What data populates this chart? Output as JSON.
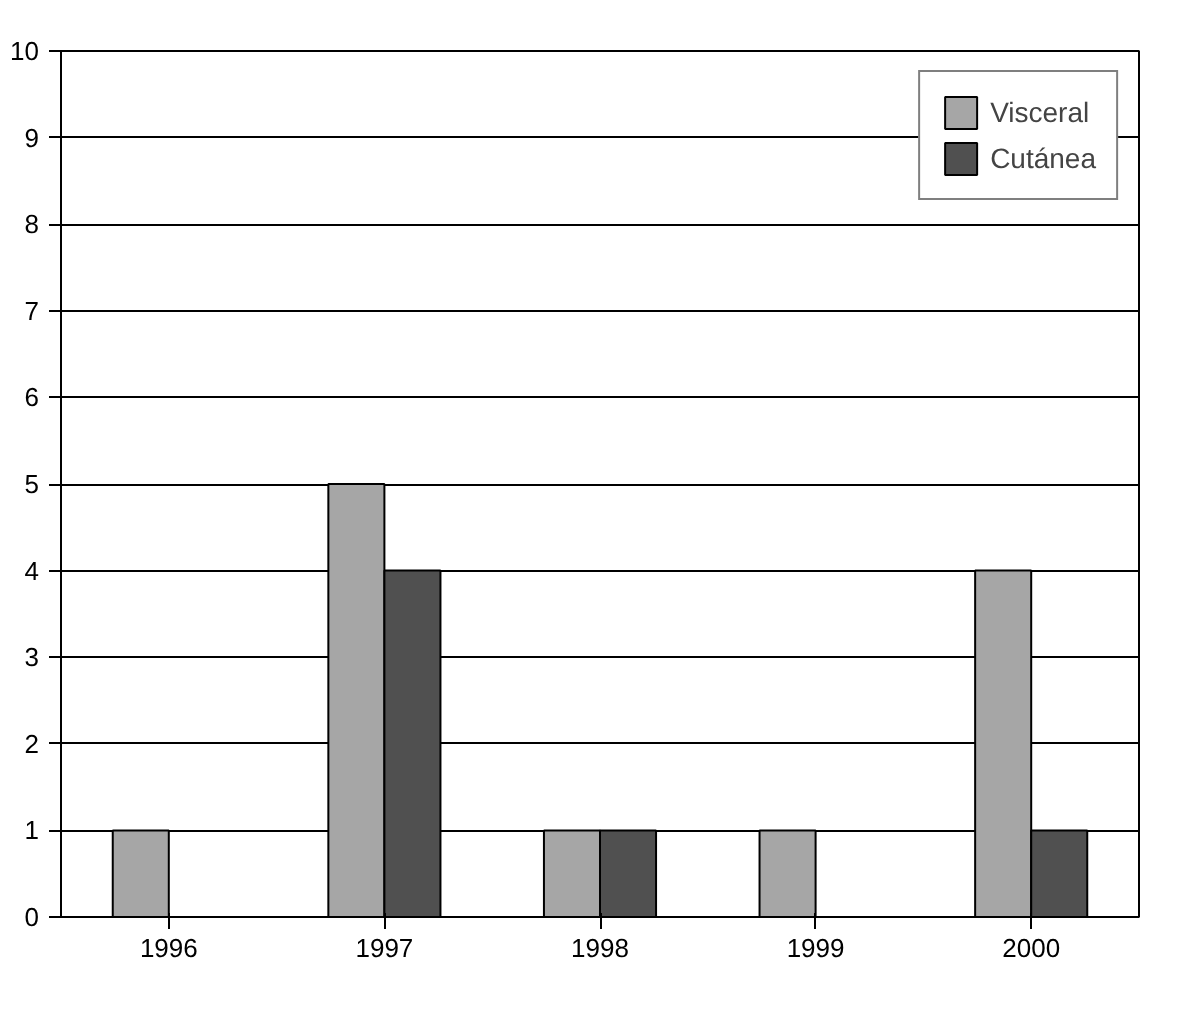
{
  "chart_data": {
    "type": "bar",
    "categories": [
      "1996",
      "1997",
      "1998",
      "1999",
      "2000"
    ],
    "series": [
      {
        "name": "Visceral",
        "color": "#a6a6a6",
        "values": [
          1,
          5,
          1,
          1,
          4
        ]
      },
      {
        "name": "Cutánea",
        "color": "#505050",
        "values": [
          null,
          4,
          1,
          0,
          1
        ]
      }
    ],
    "ylim": [
      0,
      10
    ],
    "yticks": [
      0,
      1,
      2,
      3,
      4,
      5,
      6,
      7,
      8,
      9,
      10
    ],
    "grid": "y",
    "legend": "top right"
  }
}
